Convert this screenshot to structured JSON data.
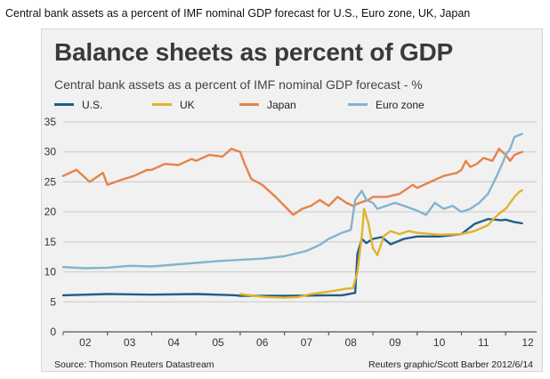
{
  "caption": "Central bank assets as a percent of IMF nominal GDP forecast for U.S., Euro zone, UK, Japan",
  "chart_data": {
    "type": "line",
    "title": "Balance sheets as percent of GDP",
    "subtitle": "Central bank assets as a percent of IMF nominal GDP forecast - %",
    "ylim": [
      0,
      35
    ],
    "yticks": [
      0,
      5,
      10,
      15,
      20,
      25,
      30,
      35
    ],
    "xlim": [
      2002,
      2012.7
    ],
    "xtick_labels": [
      "02",
      "03",
      "04",
      "05",
      "06",
      "07",
      "08",
      "09",
      "10",
      "11",
      "12"
    ],
    "legend_position": "top",
    "grid": "horizontal",
    "series": [
      {
        "name": "U.S.",
        "color": "#1f5f8b",
        "x": [
          2002.0,
          2003.0,
          2004.0,
          2005.0,
          2005.9,
          2006.0,
          2007.0,
          2008.0,
          2008.3,
          2008.6,
          2008.65,
          2008.75,
          2008.85,
          2009.0,
          2009.2,
          2009.4,
          2009.7,
          2010.0,
          2010.5,
          2011.0,
          2011.3,
          2011.6,
          2011.9,
          2012.0,
          2012.1,
          2012.2,
          2012.37
        ],
        "y": [
          6.1,
          6.3,
          6.2,
          6.3,
          6.1,
          6.0,
          6.0,
          6.1,
          6.1,
          6.5,
          13.0,
          15.5,
          14.8,
          15.5,
          15.8,
          14.6,
          15.5,
          15.9,
          15.9,
          16.3,
          18.0,
          18.8,
          18.6,
          18.7,
          18.5,
          18.3,
          18.1
        ]
      },
      {
        "name": "UK",
        "color": "#e2b32a",
        "x": [
          2006.0,
          2006.3,
          2006.6,
          2007.0,
          2007.3,
          2007.6,
          2008.0,
          2008.4,
          2008.55,
          2008.65,
          2008.75,
          2008.8,
          2008.9,
          2009.0,
          2009.1,
          2009.25,
          2009.4,
          2009.6,
          2009.8,
          2010.0,
          2010.5,
          2011.0,
          2011.3,
          2011.6,
          2011.75,
          2011.9,
          2012.0,
          2012.1,
          2012.2,
          2012.3,
          2012.37
        ],
        "y": [
          6.3,
          6.0,
          5.8,
          5.7,
          5.8,
          6.3,
          6.7,
          7.2,
          7.3,
          10.0,
          16.0,
          20.5,
          18.0,
          14.0,
          12.8,
          16.0,
          16.8,
          16.3,
          16.8,
          16.5,
          16.2,
          16.3,
          16.8,
          17.8,
          19.0,
          20.0,
          20.5,
          21.5,
          22.5,
          23.3,
          23.6
        ]
      },
      {
        "name": "Japan",
        "color": "#e6834a",
        "x": [
          2002.0,
          2002.3,
          2002.6,
          2002.9,
          2003.0,
          2003.3,
          2003.6,
          2003.9,
          2004.0,
          2004.3,
          2004.6,
          2004.9,
          2005.0,
          2005.3,
          2005.6,
          2005.8,
          2006.0,
          2006.1,
          2006.25,
          2006.5,
          2006.8,
          2007.0,
          2007.2,
          2007.4,
          2007.6,
          2007.8,
          2008.0,
          2008.2,
          2008.4,
          2008.55,
          2008.7,
          2008.9,
          2009.0,
          2009.3,
          2009.6,
          2009.9,
          2010.0,
          2010.3,
          2010.6,
          2010.9,
          2011.0,
          2011.1,
          2011.2,
          2011.35,
          2011.5,
          2011.7,
          2011.85,
          2012.0,
          2012.1,
          2012.2,
          2012.37
        ],
        "y": [
          26.0,
          27.0,
          25.0,
          26.5,
          24.5,
          25.3,
          26.0,
          27.0,
          27.0,
          28.0,
          27.8,
          28.8,
          28.5,
          29.5,
          29.2,
          30.5,
          30.0,
          28.0,
          25.5,
          24.5,
          22.5,
          21.0,
          19.5,
          20.5,
          21.0,
          22.0,
          21.0,
          22.5,
          21.5,
          21.0,
          21.5,
          22.0,
          22.5,
          22.5,
          23.0,
          24.5,
          24.0,
          25.0,
          26.0,
          26.5,
          27.0,
          28.5,
          27.5,
          28.0,
          29.0,
          28.5,
          30.5,
          29.5,
          28.5,
          29.5,
          30.0
        ]
      },
      {
        "name": "Euro zone",
        "color": "#84b3cf",
        "x": [
          2002.0,
          2002.5,
          2003.0,
          2003.5,
          2004.0,
          2004.5,
          2005.0,
          2005.5,
          2006.0,
          2006.5,
          2007.0,
          2007.5,
          2007.8,
          2008.0,
          2008.3,
          2008.5,
          2008.6,
          2008.75,
          2008.85,
          2009.0,
          2009.1,
          2009.3,
          2009.5,
          2009.7,
          2010.0,
          2010.2,
          2010.4,
          2010.6,
          2010.8,
          2011.0,
          2011.2,
          2011.4,
          2011.6,
          2011.8,
          2011.95,
          2012.0,
          2012.1,
          2012.2,
          2012.37
        ],
        "y": [
          10.8,
          10.6,
          10.7,
          11.0,
          10.9,
          11.2,
          11.5,
          11.8,
          12.0,
          12.2,
          12.6,
          13.5,
          14.5,
          15.5,
          16.5,
          17.0,
          22.0,
          23.5,
          22.0,
          21.5,
          20.5,
          21.0,
          21.5,
          21.0,
          20.2,
          19.5,
          21.5,
          20.5,
          21.0,
          20.0,
          20.5,
          21.5,
          23.0,
          26.0,
          28.5,
          29.5,
          30.5,
          32.5,
          33.0
        ]
      }
    ],
    "source": "Source: Thomson Reuters Datastream",
    "credit": "Reuters graphic/Scott Barber 2012/6/14"
  }
}
